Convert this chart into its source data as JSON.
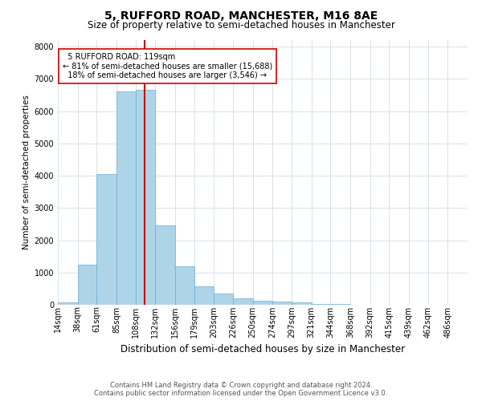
{
  "title": "5, RUFFORD ROAD, MANCHESTER, M16 8AE",
  "subtitle": "Size of property relative to semi-detached houses in Manchester",
  "xlabel": "Distribution of semi-detached houses by size in Manchester",
  "ylabel": "Number of semi-detached properties",
  "footer_line1": "Contains HM Land Registry data © Crown copyright and database right 2024.",
  "footer_line2": "Contains public sector information licensed under the Open Government Licence v3.0.",
  "property_label": "5 RUFFORD ROAD: 119sqm",
  "smaller_pct": "81%",
  "smaller_count": "15,688",
  "larger_pct": "18%",
  "larger_count": "3,546",
  "bin_labels": [
    "14sqm",
    "38sqm",
    "61sqm",
    "85sqm",
    "108sqm",
    "132sqm",
    "156sqm",
    "179sqm",
    "203sqm",
    "226sqm",
    "250sqm",
    "274sqm",
    "297sqm",
    "321sqm",
    "344sqm",
    "368sqm",
    "392sqm",
    "415sqm",
    "439sqm",
    "462sqm",
    "486sqm"
  ],
  "bin_edges": [
    14,
    38,
    61,
    85,
    108,
    132,
    156,
    179,
    203,
    226,
    250,
    274,
    297,
    321,
    344,
    368,
    392,
    415,
    439,
    462,
    486,
    510
  ],
  "bar_values": [
    80,
    1250,
    4050,
    6600,
    6650,
    2450,
    1200,
    560,
    340,
    200,
    130,
    100,
    80,
    30,
    18,
    10,
    7,
    5,
    3,
    2,
    1
  ],
  "bar_color": "#aed4e8",
  "bar_edge_color": "#6baed6",
  "vline_color": "#cc0000",
  "vline_x": 119,
  "annotation_box_color": "#ffffff",
  "annotation_box_edge": "#cc0000",
  "ylim": [
    0,
    8200
  ],
  "background_color": "#ffffff",
  "grid_color": "#d0dde8",
  "title_fontsize": 10,
  "subtitle_fontsize": 8.5,
  "xlabel_fontsize": 8.5,
  "ylabel_fontsize": 7.5,
  "tick_fontsize": 7,
  "annot_fontsize": 7,
  "footer_fontsize": 6
}
